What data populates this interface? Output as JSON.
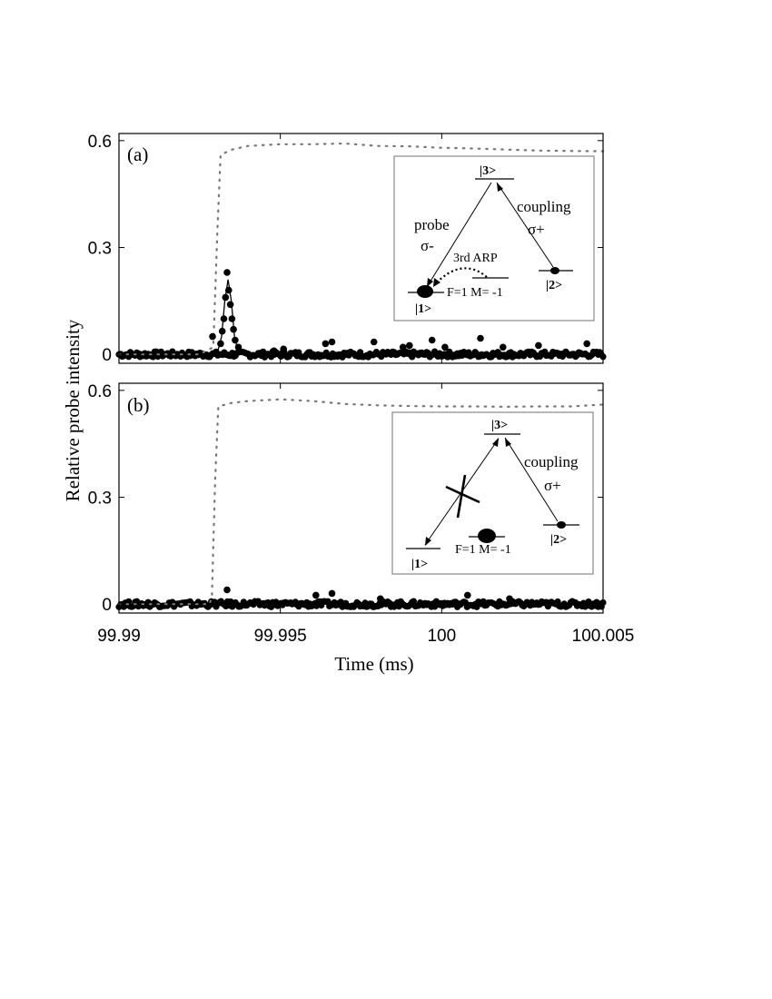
{
  "chart_data": [
    {
      "type": "scatter",
      "panel_label": "(a)",
      "xlabel": "Time (ms)",
      "ylabel": "Relative probe intensity",
      "xlim": [
        99.99,
        100.005
      ],
      "ylim": [
        -0.025,
        0.62
      ],
      "x_ticks": [
        99.99,
        99.995,
        100,
        100.005
      ],
      "x_tick_labels": [
        "99.99",
        "99.995",
        "100",
        "100.005"
      ],
      "y_ticks": [
        0,
        0.3,
        0.6
      ],
      "y_tick_labels": [
        "0",
        "0.3",
        "0.6"
      ],
      "grid": false,
      "legend": "none",
      "series": [
        {
          "role": "coupling-dotted",
          "points": [
            [
              99.99,
              0
            ],
            [
              99.9925,
              0
            ],
            [
              99.99292,
              0.02
            ],
            [
              99.99305,
              0.35
            ],
            [
              99.99315,
              0.56
            ],
            [
              99.9935,
              0.575
            ],
            [
              99.994,
              0.585
            ],
            [
              99.995,
              0.59
            ],
            [
              99.996,
              0.59
            ],
            [
              99.997,
              0.592
            ],
            [
              99.998,
              0.585
            ],
            [
              99.999,
              0.584
            ],
            [
              100,
              0.58
            ],
            [
              100.001,
              0.578
            ],
            [
              100.002,
              0.575
            ],
            [
              100.003,
              0.572
            ],
            [
              100.004,
              0.571
            ],
            [
              100.005,
              0.57
            ]
          ]
        },
        {
          "role": "probe-points",
          "points": [
            [
              99.9929,
              0.05
            ],
            [
              99.99315,
              0.03
            ],
            [
              99.9932,
              0.065
            ],
            [
              99.99325,
              0.1
            ],
            [
              99.9933,
              0.16
            ],
            [
              99.99335,
              0.23
            ],
            [
              99.9934,
              0.18
            ],
            [
              99.99345,
              0.14
            ],
            [
              99.9935,
              0.1
            ],
            [
              99.99355,
              0.07
            ],
            [
              99.9936,
              0.04
            ],
            [
              99.9937,
              0.02
            ],
            [
              99.9948,
              0.01
            ],
            [
              99.9951,
              0.015
            ],
            [
              99.9964,
              0.03
            ],
            [
              99.9966,
              0.035
            ],
            [
              99.9979,
              0.035
            ],
            [
              99.9988,
              0.02
            ],
            [
              99.999,
              0.025
            ],
            [
              99.9997,
              0.04
            ],
            [
              100.0001,
              0.02
            ],
            [
              100.0012,
              0.045
            ],
            [
              100.0019,
              0.02
            ],
            [
              100.003,
              0.025
            ],
            [
              100.0045,
              0.03
            ]
          ]
        },
        {
          "role": "probe-fit",
          "points": [
            [
              99.9925,
              0
            ],
            [
              99.99305,
              0.005
            ],
            [
              99.99318,
              0.05
            ],
            [
              99.99328,
              0.15
            ],
            [
              99.99338,
              0.21
            ],
            [
              99.99348,
              0.15
            ],
            [
              99.99358,
              0.05
            ],
            [
              99.9937,
              0.005
            ],
            [
              99.994,
              0
            ]
          ]
        }
      ],
      "inset": {
        "level_top": "|3>",
        "level_left": "|1>",
        "level_right": "|2>",
        "level_middle": "F=1 M= -1",
        "left_beam": "probe",
        "left_pol": "σ-",
        "right_beam": "coupling",
        "right_pol": "σ+",
        "transfer": "3rd ARP"
      }
    },
    {
      "type": "scatter",
      "panel_label": "(b)",
      "xlabel": "Time (ms)",
      "ylabel": "Relative probe intensity",
      "xlim": [
        99.99,
        100.005
      ],
      "ylim": [
        -0.025,
        0.62
      ],
      "x_ticks": [
        99.99,
        99.995,
        100,
        100.005
      ],
      "x_tick_labels": [
        "99.99",
        "99.995",
        "100",
        "100.005"
      ],
      "y_ticks": [
        0,
        0.3,
        0.6
      ],
      "y_tick_labels": [
        "0",
        "0.3",
        "0.6"
      ],
      "grid": false,
      "legend": "none",
      "series": [
        {
          "role": "coupling-dotted",
          "points": [
            [
              99.99,
              0
            ],
            [
              99.9928,
              0
            ],
            [
              99.99288,
              0.02
            ],
            [
              99.99298,
              0.35
            ],
            [
              99.99308,
              0.555
            ],
            [
              99.9935,
              0.565
            ],
            [
              99.994,
              0.57
            ],
            [
              99.995,
              0.575
            ],
            [
              99.996,
              0.57
            ],
            [
              99.997,
              0.562
            ],
            [
              99.998,
              0.558
            ],
            [
              99.999,
              0.556
            ],
            [
              100,
              0.555
            ],
            [
              100.001,
              0.555
            ],
            [
              100.002,
              0.554
            ],
            [
              100.003,
              0.555
            ],
            [
              100.004,
              0.555
            ],
            [
              100.005,
              0.56
            ]
          ]
        },
        {
          "role": "probe-points",
          "points": [
            [
              99.99335,
              0.04
            ],
            [
              99.9961,
              0.025
            ],
            [
              99.9966,
              0.03
            ],
            [
              99.9981,
              0.015
            ],
            [
              100.0008,
              0.025
            ],
            [
              100.0021,
              0.015
            ]
          ]
        }
      ],
      "inset": {
        "level_top": "|3>",
        "level_left": "|1>",
        "level_right": "|2>",
        "level_middle": "F=1 M= -1",
        "right_beam": "coupling",
        "right_pol": "σ+"
      }
    }
  ]
}
